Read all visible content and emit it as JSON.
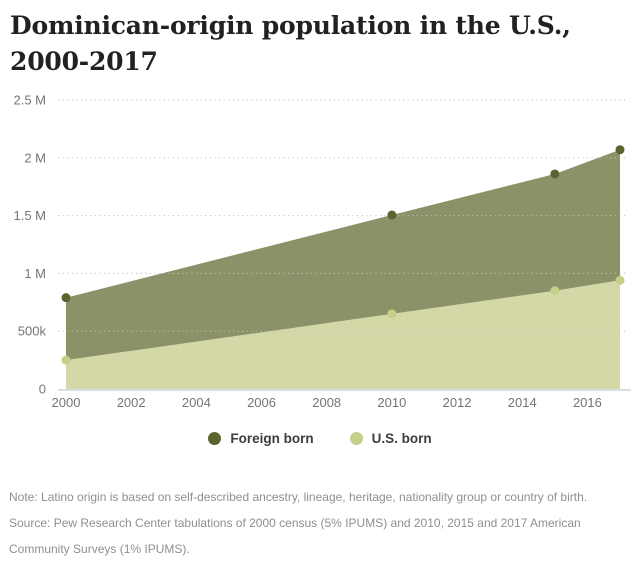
{
  "header": {
    "title_line1": "Dominican-origin population in the U.S.,",
    "title_line2": "2000-2017"
  },
  "chart_data": {
    "type": "area",
    "stacked": true,
    "title": "Dominican-origin population in the U.S., 2000-2017",
    "x": [
      2000,
      2010,
      2015,
      2017
    ],
    "xlim": [
      2000,
      2017
    ],
    "ylim": [
      0,
      2500000
    ],
    "series": [
      {
        "name": "Foreign born",
        "values": [
          540000,
          855000,
          1010000,
          1130000
        ],
        "area_color": "#8c9268",
        "dot_color": "#5a642f"
      },
      {
        "name": "U.S. born",
        "values": [
          250000,
          650000,
          850000,
          940000
        ],
        "area_color": "#d3d8a6",
        "dot_color": "#c5cf8a"
      }
    ],
    "stacked_totals": [
      790000,
      1505000,
      1860000,
      2070000
    ],
    "yticks": [
      {
        "value": 0,
        "label": "0"
      },
      {
        "value": 500000,
        "label": "500k"
      },
      {
        "value": 1000000,
        "label": "1 M"
      },
      {
        "value": 1500000,
        "label": "1.5 M"
      },
      {
        "value": 2000000,
        "label": "2 M"
      },
      {
        "value": 2500000,
        "label": "2.5 M"
      }
    ],
    "xticks": [
      2000,
      2002,
      2004,
      2006,
      2008,
      2010,
      2012,
      2014,
      2016
    ],
    "grid": "dotted-horizontal",
    "legend_position": "bottom"
  },
  "footer": {
    "note": "Note: Latino origin is based on self-described ancestry, lineage, heritage, nationality group or country of birth.",
    "source": "Source: Pew Research Center tabulations of 2000 census (5% IPUMS) and 2010, 2015 and 2017 American Community Surveys (1% IPUMS)."
  },
  "colors": {
    "background": "#ffffff",
    "title_text": "#212121",
    "axis_text": "#757575",
    "legend_text": "#3d3d3d",
    "note_text": "#8f8f8f",
    "gridline": "#bfbfbf",
    "axis_line": "#ccd3da"
  }
}
